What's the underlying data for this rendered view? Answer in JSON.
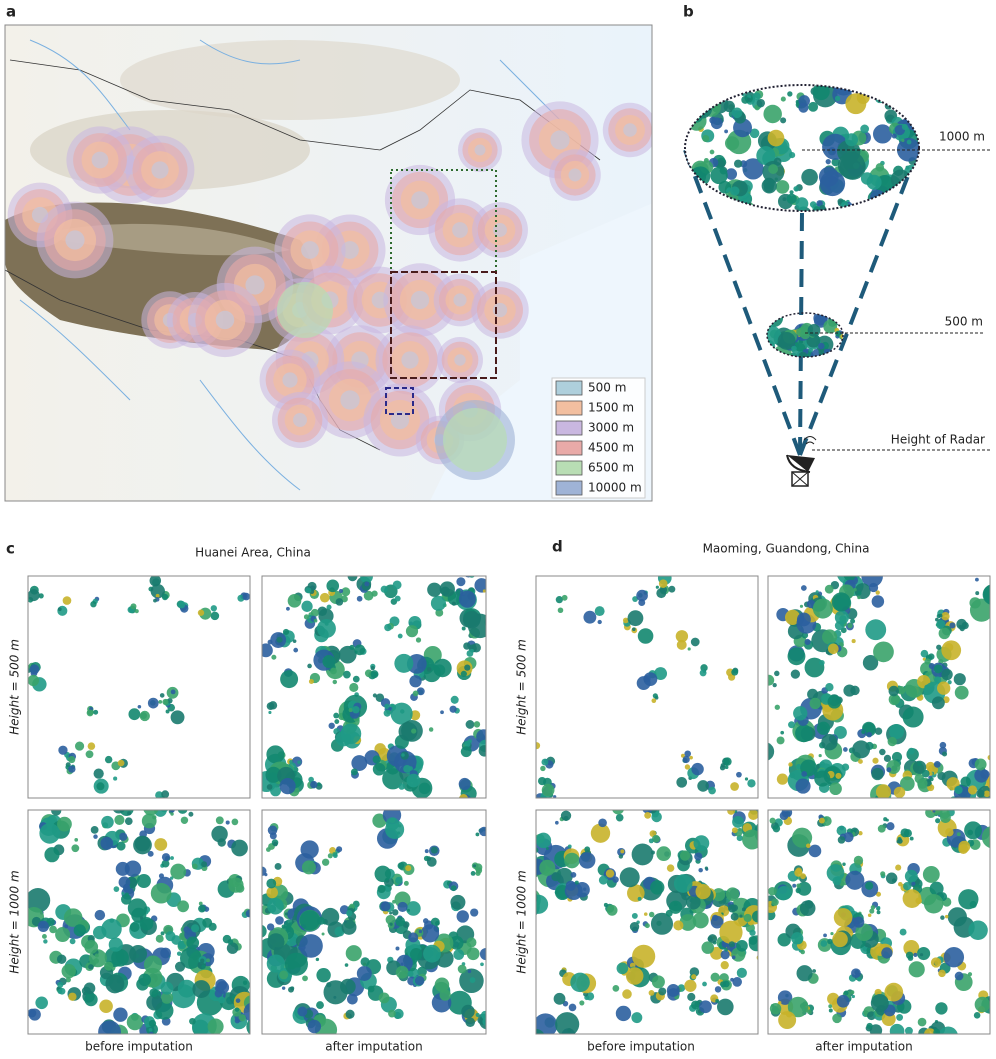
{
  "panels": {
    "a": {
      "label": "a",
      "legend": [
        {
          "label": "500 m",
          "color": "#aecfdc"
        },
        {
          "label": "1500 m",
          "color": "#f2bfa0"
        },
        {
          "label": "3000 m",
          "color": "#c9b7e0"
        },
        {
          "label": "4500 m",
          "color": "#e8aaa8"
        },
        {
          "label": "6500 m",
          "color": "#b8ddb4"
        },
        {
          "label": "10000 m",
          "color": "#9fb3d6"
        }
      ]
    },
    "b": {
      "label": "b",
      "heights": [
        "1000 m",
        "500 m",
        "Height of Radar"
      ]
    },
    "c": {
      "label": "c",
      "title": "Huanei Area, China",
      "rows": [
        "Height = 500 m",
        "Height = 1000 m"
      ],
      "columns": [
        "before imputation",
        "after imputation"
      ]
    },
    "d": {
      "label": "d",
      "title": "Maoming, Guandong, China",
      "rows": [
        "Height = 500 m",
        "Height = 1000 m"
      ],
      "columns": [
        "before imputation",
        "after imputation"
      ]
    }
  }
}
